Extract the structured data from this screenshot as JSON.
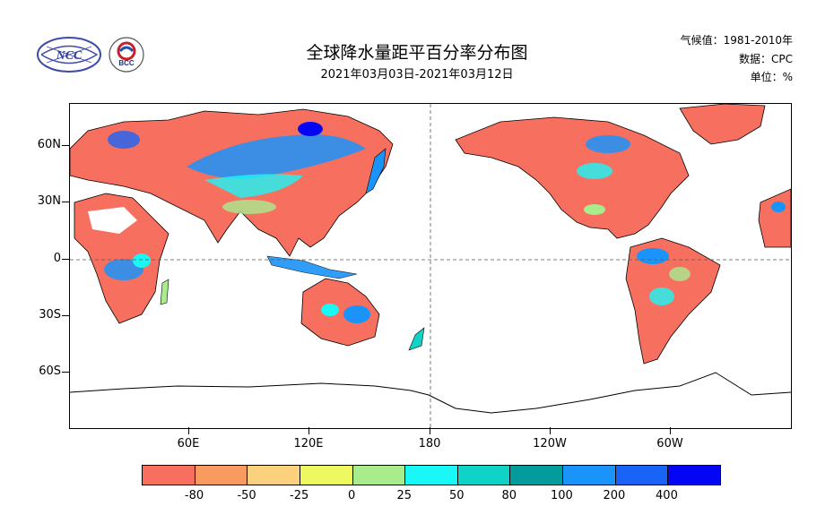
{
  "header": {
    "title": "全球降水量距平百分率分布图",
    "subtitle": "2021年03月03日-2021年03月12日",
    "climate_label": "气候值：1981-2010年",
    "data_label": "数据：CPC",
    "unit_label": "单位：%"
  },
  "logos": {
    "ncc": "NCC",
    "bcc": "BCC"
  },
  "axes": {
    "lat_labels": [
      "60N",
      "30N",
      "0",
      "30S",
      "60S"
    ],
    "lon_labels": [
      "60E",
      "120E",
      "180",
      "120W",
      "60W"
    ]
  },
  "colorbar": {
    "colors": [
      "#f7705f",
      "#f99b60",
      "#fbd17d",
      "#edf95f",
      "#a8ec8e",
      "#19f7f7",
      "#0fd3c7",
      "#049b9d",
      "#1a93fb",
      "#1964f7",
      "#0505f5"
    ],
    "labels": [
      "-80",
      "-50",
      "-25",
      "0",
      "25",
      "50",
      "80",
      "100",
      "200",
      "400"
    ]
  }
}
